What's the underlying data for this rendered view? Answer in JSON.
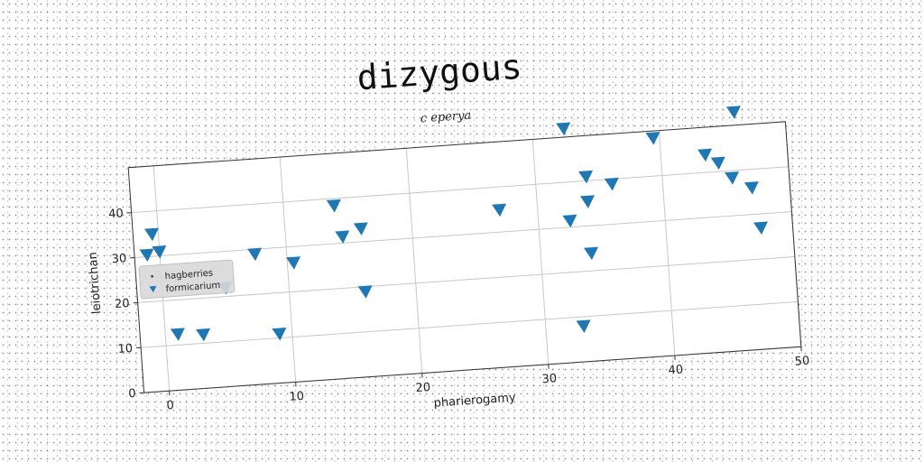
{
  "figure": {
    "title": "dizygous",
    "subtitle": "c eperya"
  },
  "chart_data": {
    "type": "scatter",
    "title": "dizygous",
    "subtitle": "c eperya",
    "xlabel": "pharierogamy",
    "ylabel": "leiotrichan",
    "xlim": [
      -2,
      50
    ],
    "ylim": [
      0,
      50
    ],
    "xticks": [
      0,
      10,
      20,
      30,
      40,
      50
    ],
    "yticks": [
      0,
      10,
      20,
      30,
      40
    ],
    "grid": true,
    "legend_position": "center-left",
    "series": [
      {
        "name": "hagberries",
        "marker": "dot",
        "color": "#555555",
        "points": []
      },
      {
        "name": "formicarium",
        "marker": "triangle-down",
        "color": "#1f77b4",
        "points": [
          [
            -0.5,
            35
          ],
          [
            -1,
            30.5
          ],
          [
            0,
            31
          ],
          [
            1,
            12.5
          ],
          [
            3,
            12
          ],
          [
            5,
            22
          ],
          [
            7.5,
            29
          ],
          [
            9,
            11
          ],
          [
            10.5,
            26.5
          ],
          [
            14,
            38.5
          ],
          [
            14.5,
            31.5
          ],
          [
            16,
            33
          ],
          [
            16,
            19
          ],
          [
            27,
            35
          ],
          [
            32.5,
            52
          ],
          [
            32.5,
            31.5
          ],
          [
            33,
            8
          ],
          [
            34,
            41
          ],
          [
            34,
            35.5
          ],
          [
            34,
            24
          ],
          [
            36,
            39
          ],
          [
            39.5,
            48.5
          ],
          [
            43.5,
            44
          ],
          [
            44.5,
            42
          ],
          [
            45.5,
            38.5
          ],
          [
            46,
            53
          ],
          [
            47,
            36
          ],
          [
            47.5,
            27
          ]
        ]
      }
    ]
  }
}
